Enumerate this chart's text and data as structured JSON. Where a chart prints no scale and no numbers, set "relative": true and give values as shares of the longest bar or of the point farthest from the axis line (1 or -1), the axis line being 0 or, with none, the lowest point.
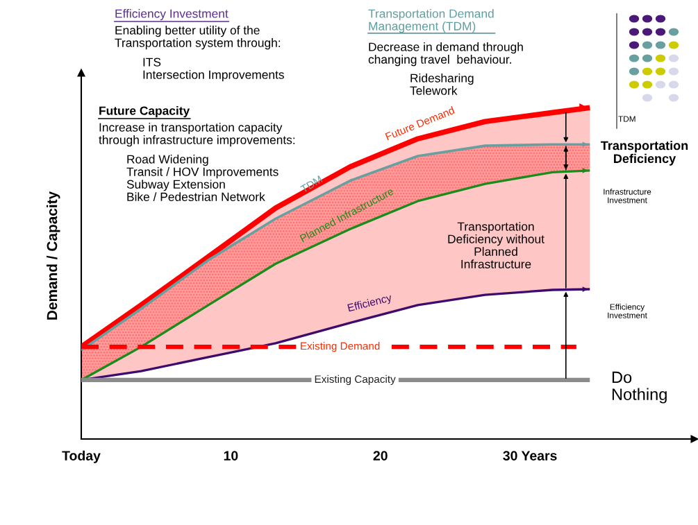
{
  "chart_data": {
    "type": "line",
    "relative": true,
    "ylabel": "Demand / Capacity",
    "xlim": [
      0,
      41
    ],
    "xticks": [
      {
        "value": 0,
        "label": "Today"
      },
      10,
      20,
      {
        "value": 30,
        "label": "30 Years"
      }
    ],
    "grid": false,
    "marker": "none",
    "series": [
      {
        "name": "Future Demand",
        "color": "#ff0000",
        "x": [
          0,
          4,
          8.5,
          13,
          18,
          22.5,
          27,
          31.5,
          34
        ],
        "values": [
          0.278,
          0.404,
          0.55,
          0.697,
          0.822,
          0.906,
          0.958,
          0.985,
          1
        ],
        "lower": [
          0.178,
          0.205,
          0.247,
          0.289,
          0.351,
          0.404,
          0.435,
          0.45,
          0.452
        ],
        "upper": [
          0.278,
          0.404,
          0.55,
          0.697,
          0.822,
          0.906,
          0.958,
          0.985,
          1
        ]
      },
      {
        "name": "TDM",
        "color": "#6a9fa0",
        "x": [
          0,
          4,
          8.5,
          13,
          18,
          22.5,
          27,
          31.5,
          34
        ],
        "values": [
          0.268,
          0.393,
          0.54,
          0.665,
          0.78,
          0.854,
          0.885,
          0.889,
          0.889
        ],
        "lower": [
          0.178,
          0.278,
          0.404,
          0.529,
          0.634,
          0.718,
          0.77,
          0.805,
          0.81
        ],
        "upper": [
          0.278,
          0.404,
          0.55,
          0.665,
          0.78,
          0.854,
          0.885,
          0.889,
          0.889
        ]
      },
      {
        "name": "Planned Infrastructure",
        "color": "#1a8c1a",
        "x": [
          0,
          4,
          8.5,
          13,
          18,
          22.5,
          27,
          31.5,
          34
        ],
        "values": [
          0.178,
          0.278,
          0.404,
          0.529,
          0.634,
          0.718,
          0.77,
          0.805,
          0.81
        ]
      },
      {
        "name": "Efficiency",
        "color": "#3d0a6e",
        "x": [
          0,
          4,
          8.5,
          13,
          18,
          22.5,
          27,
          31.5,
          34
        ],
        "values": [
          0.178,
          0.205,
          0.247,
          0.289,
          0.351,
          0.404,
          0.435,
          0.45,
          0.452
        ]
      },
      {
        "name": "Existing Demand",
        "color": "#ff0000",
        "line_style": "dashed",
        "x": [
          0,
          33.1
        ],
        "values": [
          0.278,
          0.278
        ]
      },
      {
        "name": "Existing Capacity",
        "color": "#8c8c8c",
        "x": [
          0,
          34
        ],
        "values": [
          0.178,
          0.178
        ]
      }
    ],
    "annotations": [
      "Efficiency Investment",
      "Enabling better utility of the\nTransportation system through:",
      "ITS\nIntersection Improvements",
      "Transportation Demand\nManagement (TDM)",
      "Decrease in demand through\nchanging travel  behaviour.",
      "Ridesharing\nTelework",
      "Future Capacity",
      "Increase in transportation capacity\nthrough infrastructure improvements:",
      "Road Widening\nTransit / HOV Improvements\nSubway Extension\nBike / Pedestrian Network",
      "Transportation\nDeficiency",
      "Infrastructure\nInvestment",
      "Efficiency\nInvestment",
      "Do\nNothing",
      "Transportation\nDeficiency without\nPlanned\nInfrastructure",
      "TDM"
    ]
  }
}
